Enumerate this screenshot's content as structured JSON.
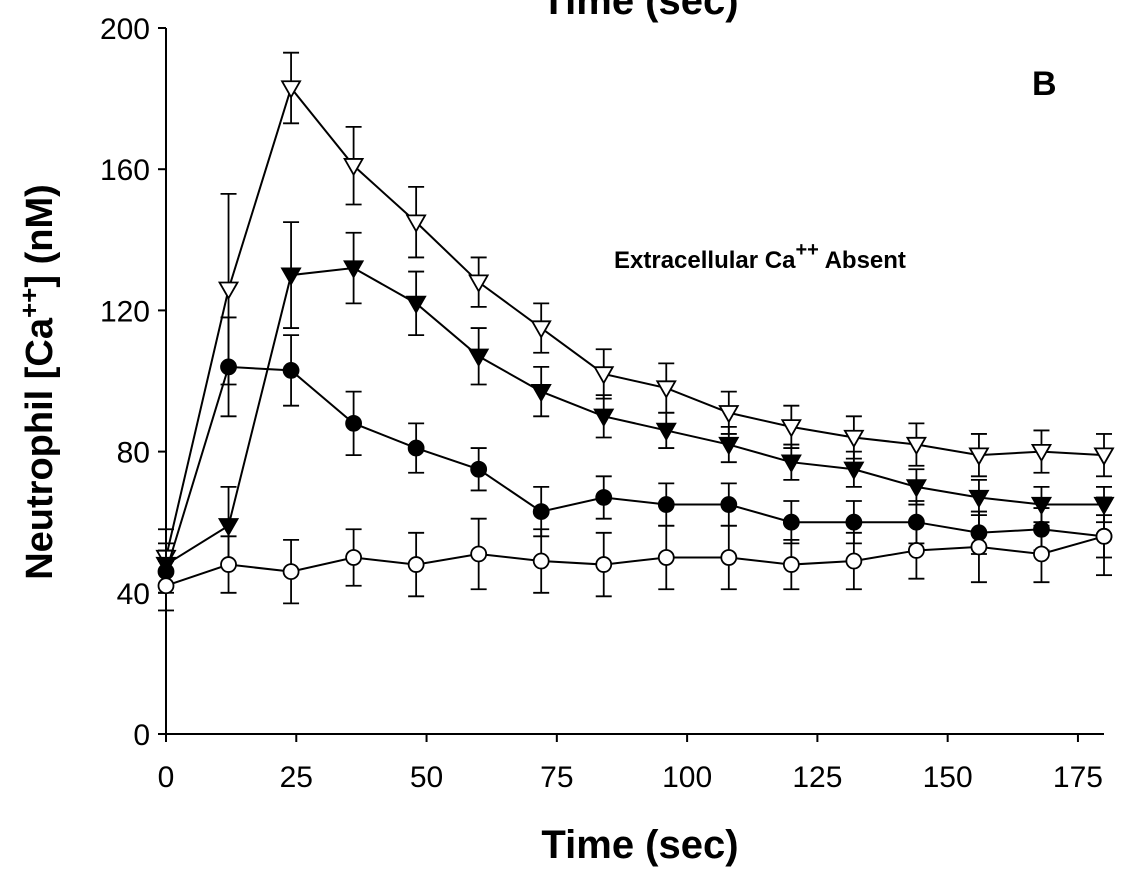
{
  "chart_data": {
    "type": "line",
    "top_caption": "Time (sec)",
    "panel_label": "B",
    "annotation": {
      "text": "Extracellular Ca",
      "superscript": "++",
      "suffix": " Absent"
    },
    "xlabel": "Time (sec)",
    "ylabel": {
      "text": "Neutrophil [Ca",
      "superscript": "++",
      "suffix": "] (nM)"
    },
    "xlim": [
      0,
      180
    ],
    "ylim": [
      0,
      200
    ],
    "xticks": [
      0,
      25,
      50,
      75,
      100,
      125,
      150,
      175
    ],
    "yticks": [
      0,
      40,
      80,
      120,
      160,
      200
    ],
    "grid": false,
    "x": [
      0,
      12,
      24,
      36,
      48,
      60,
      72,
      84,
      96,
      108,
      120,
      132,
      144,
      156,
      168,
      180
    ],
    "series": [
      {
        "marker": "triangle-down-open",
        "values": [
          50,
          126,
          183,
          161,
          145,
          128,
          115,
          102,
          98,
          91,
          87,
          84,
          82,
          79,
          80,
          79
        ],
        "errors": [
          8,
          27,
          10,
          11,
          10,
          7,
          7,
          7,
          7,
          6,
          6,
          6,
          6,
          6,
          6,
          6
        ]
      },
      {
        "marker": "triangle-down-filled",
        "values": [
          48,
          59,
          130,
          132,
          122,
          107,
          97,
          90,
          86,
          82,
          77,
          75,
          70,
          67,
          65,
          65
        ],
        "errors": [
          6,
          11,
          15,
          10,
          9,
          8,
          7,
          6,
          5,
          5,
          5,
          5,
          5,
          5,
          5,
          5
        ]
      },
      {
        "marker": "circle-filled",
        "values": [
          46,
          104,
          103,
          88,
          81,
          75,
          63,
          67,
          65,
          65,
          60,
          60,
          60,
          57,
          58,
          56
        ],
        "errors": [
          6,
          14,
          10,
          9,
          7,
          6,
          7,
          6,
          6,
          6,
          6,
          6,
          6,
          6,
          6,
          6
        ]
      },
      {
        "marker": "circle-open",
        "values": [
          42,
          48,
          46,
          50,
          48,
          51,
          49,
          48,
          50,
          50,
          48,
          49,
          52,
          53,
          51,
          56
        ],
        "errors": [
          7,
          8,
          9,
          8,
          9,
          10,
          9,
          9,
          9,
          9,
          7,
          8,
          8,
          10,
          8,
          11
        ]
      }
    ]
  }
}
